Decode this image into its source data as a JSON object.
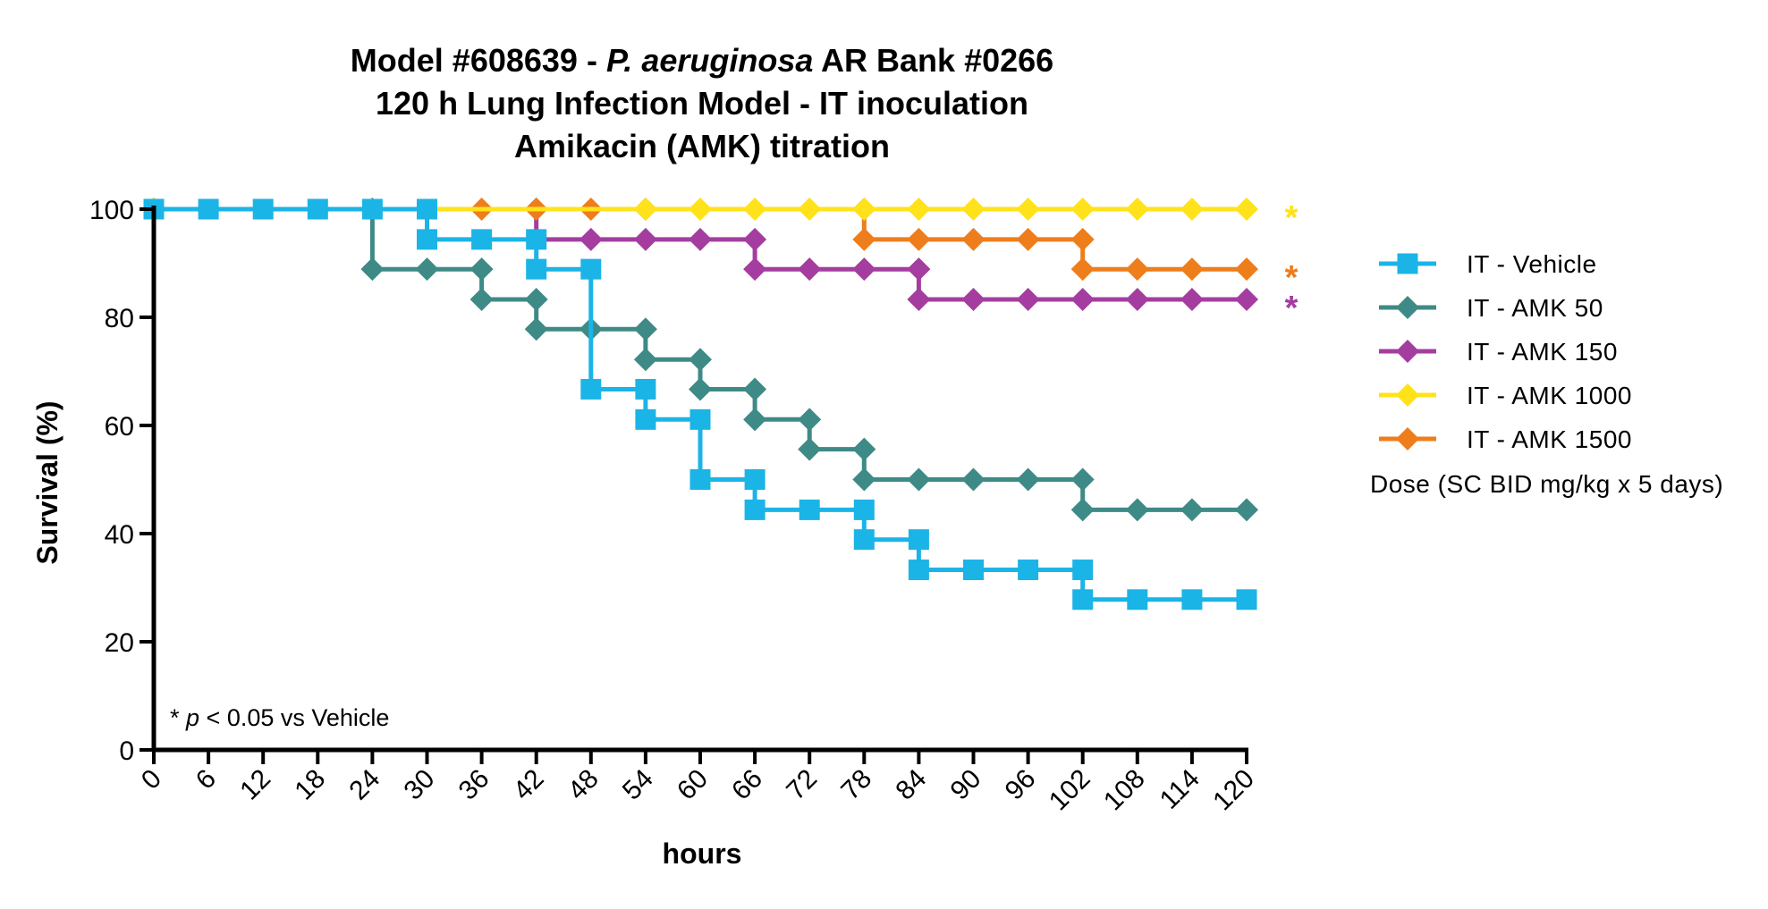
{
  "chart_data": {
    "type": "line",
    "step": true,
    "title_lines": [
      {
        "parts": [
          {
            "text": "Model #608639 - "
          },
          {
            "text": "P. aeruginosa",
            "italic": true
          },
          {
            "text": " AR Bank #0266"
          }
        ]
      },
      {
        "parts": [
          {
            "text": "120 h Lung Infection Model - IT inoculation"
          }
        ]
      },
      {
        "parts": [
          {
            "text": "Amikacin (AMK) titration"
          }
        ]
      }
    ],
    "xlabel": "hours",
    "ylabel": "Survival (%)",
    "xlim": [
      0,
      120
    ],
    "ylim": [
      0,
      100
    ],
    "xticks": [
      0,
      6,
      12,
      18,
      24,
      30,
      36,
      42,
      48,
      54,
      60,
      66,
      72,
      78,
      84,
      90,
      96,
      102,
      108,
      114,
      120
    ],
    "yticks": [
      0,
      20,
      40,
      60,
      80,
      100
    ],
    "grid": false,
    "legend_position": "right",
    "legend_title": "Dose (SC BID mg/kg x 5 days)",
    "annotation": {
      "prefix": "* ",
      "italic": "p",
      "suffix": " < 0.05 vs Vehicle"
    },
    "series": [
      {
        "name": "IT - Vehicle",
        "color": "#1BB4E6",
        "marker": "square",
        "points": [
          [
            0,
            100
          ],
          [
            6,
            100
          ],
          [
            12,
            100
          ],
          [
            18,
            100
          ],
          [
            24,
            100
          ],
          [
            30,
            100
          ],
          [
            30,
            94.4
          ],
          [
            36,
            94.4
          ],
          [
            42,
            94.4
          ],
          [
            42,
            88.9
          ],
          [
            48,
            88.9
          ],
          [
            48,
            66.7
          ],
          [
            54,
            66.7
          ],
          [
            54,
            61.1
          ],
          [
            60,
            61.1
          ],
          [
            60,
            50
          ],
          [
            66,
            50
          ],
          [
            66,
            44.4
          ],
          [
            72,
            44.4
          ],
          [
            78,
            44.4
          ],
          [
            78,
            38.9
          ],
          [
            84,
            38.9
          ],
          [
            84,
            33.3
          ],
          [
            90,
            33.3
          ],
          [
            96,
            33.3
          ],
          [
            102,
            33.3
          ],
          [
            102,
            27.8
          ],
          [
            108,
            27.8
          ],
          [
            114,
            27.8
          ],
          [
            120,
            27.8
          ]
        ]
      },
      {
        "name": "IT - AMK 50",
        "color": "#3E8A86",
        "marker": "diamond",
        "points": [
          [
            0,
            100
          ],
          [
            24,
            100
          ],
          [
            24,
            88.9
          ],
          [
            30,
            88.9
          ],
          [
            36,
            88.9
          ],
          [
            36,
            83.3
          ],
          [
            42,
            83.3
          ],
          [
            42,
            77.8
          ],
          [
            48,
            77.8
          ],
          [
            54,
            77.8
          ],
          [
            54,
            72.2
          ],
          [
            60,
            72.2
          ],
          [
            60,
            66.7
          ],
          [
            66,
            66.7
          ],
          [
            66,
            61.1
          ],
          [
            72,
            61.1
          ],
          [
            72,
            55.6
          ],
          [
            78,
            55.6
          ],
          [
            78,
            50
          ],
          [
            84,
            50
          ],
          [
            90,
            50
          ],
          [
            96,
            50
          ],
          [
            102,
            50
          ],
          [
            102,
            44.4
          ],
          [
            108,
            44.4
          ],
          [
            114,
            44.4
          ],
          [
            120,
            44.4
          ]
        ]
      },
      {
        "name": "IT - AMK 150",
        "color": "#A43D9F",
        "marker": "diamond",
        "points": [
          [
            0,
            100
          ],
          [
            42,
            100
          ],
          [
            42,
            94.4
          ],
          [
            48,
            94.4
          ],
          [
            54,
            94.4
          ],
          [
            60,
            94.4
          ],
          [
            66,
            94.4
          ],
          [
            66,
            88.9
          ],
          [
            72,
            88.9
          ],
          [
            78,
            88.9
          ],
          [
            84,
            88.9
          ],
          [
            84,
            83.3
          ],
          [
            90,
            83.3
          ],
          [
            96,
            83.3
          ],
          [
            102,
            83.3
          ],
          [
            108,
            83.3
          ],
          [
            114,
            83.3
          ],
          [
            120,
            83.3
          ]
        ]
      },
      {
        "name": "IT - AMK 1000",
        "color": "#FFE21A",
        "marker": "diamond",
        "points": [
          [
            0,
            100
          ],
          [
            54,
            100
          ],
          [
            60,
            100
          ],
          [
            66,
            100
          ],
          [
            72,
            100
          ],
          [
            78,
            100
          ],
          [
            84,
            100
          ],
          [
            90,
            100
          ],
          [
            96,
            100
          ],
          [
            102,
            100
          ],
          [
            108,
            100
          ],
          [
            114,
            100
          ],
          [
            120,
            100
          ]
        ]
      },
      {
        "name": "IT - AMK 1500",
        "color": "#EE7D1C",
        "marker": "diamond",
        "points": [
          [
            0,
            100
          ],
          [
            36,
            100
          ],
          [
            42,
            100
          ],
          [
            48,
            100
          ],
          [
            54,
            100
          ],
          [
            78,
            100
          ],
          [
            78,
            94.4
          ],
          [
            84,
            94.4
          ],
          [
            90,
            94.4
          ],
          [
            96,
            94.4
          ],
          [
            102,
            94.4
          ],
          [
            102,
            88.9
          ],
          [
            108,
            88.9
          ],
          [
            114,
            88.9
          ],
          [
            120,
            88.9
          ]
        ]
      }
    ],
    "draw_order": [
      1,
      2,
      4,
      3,
      0
    ],
    "significance_stars": [
      {
        "text": "*",
        "color": "#FFE21A",
        "y": 100
      },
      {
        "text": "*",
        "color": "#EE7D1C",
        "y": 88.9
      },
      {
        "text": "*",
        "color": "#A43D9F",
        "y": 83.3
      }
    ]
  }
}
